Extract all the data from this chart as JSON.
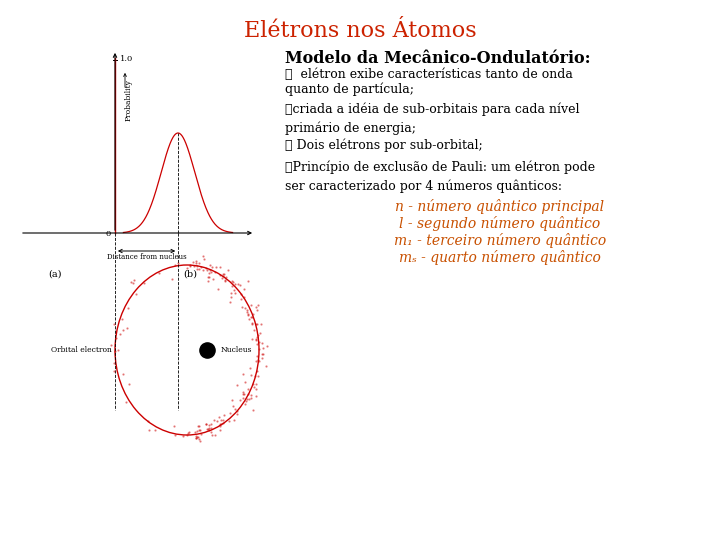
{
  "title": "Elétrons nos Átomos",
  "title_color": "#cc2200",
  "title_fontsize": 16,
  "bg_color": "#ffffff",
  "heading": "Modelo da Mecânico-Ondulatório:",
  "heading_color": "#000000",
  "heading_fontsize": 11.5,
  "bullet1a": "✓  elétron exibe características tanto de onda",
  "bullet1b": "quanto de partícula;",
  "bullet2": "✓criada a idéia de sub-orbitais para cada nível\nprimário de energia;",
  "bullet3": "✓ Dois elétrons por sub-orbital;",
  "bullet4": "✓Princípio de exclusão de Pauli: um elétron pode\nser caracterizado por 4 números quânticos:",
  "line1": "n - número quântico principal",
  "line2": "l - segundo número quântico",
  "line3": "m₁ - terceiro número quântico",
  "line4": "mₛ - quarto número quântico",
  "quantum_color": "#c85000",
  "quantum_fontsize": 10,
  "text_color": "#000000",
  "text_fontsize": 9,
  "prob_label": "Probability",
  "dist_label": "Distance from nucleus",
  "nucleus_label": "Nucleus",
  "orbital_label": "Orbital electron",
  "label_a": "(a)",
  "label_b": "(b)",
  "label_10": "1.0",
  "label_0": "0"
}
